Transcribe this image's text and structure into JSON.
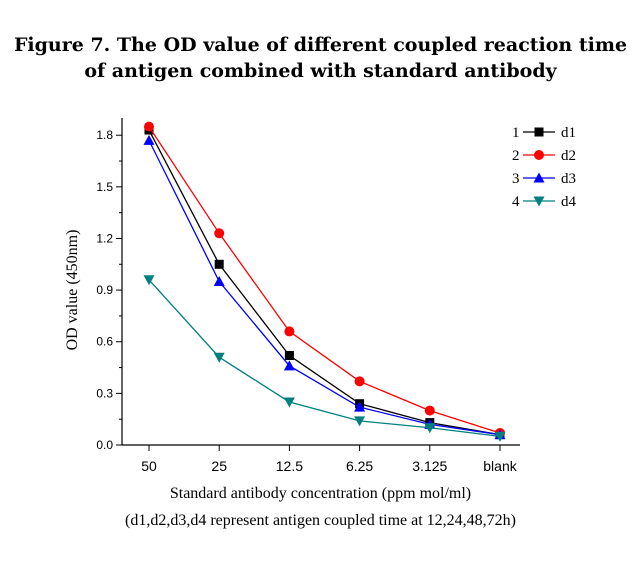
{
  "figure": {
    "title_line1": "Figure 7. The OD value of different coupled reaction time",
    "title_line2": "of antigen combined with standard antibody",
    "note": "(d1,d2,d3,d4 represent antigen coupled time at 12,24,48,72h)"
  },
  "chart_data": {
    "type": "line",
    "title": "Figure 7. The OD value of different coupled reaction time of antigen combined with standard antibody",
    "xlabel": "Standard antibody concentration (ppm mol/ml)",
    "ylabel": "OD value (450nm)",
    "categories": [
      "50",
      "25",
      "12.5",
      "6.25",
      "3.125",
      "blank"
    ],
    "ylim": [
      0,
      1.9
    ],
    "yticks": [
      "0.0",
      "0.3",
      "0.6",
      "0.9",
      "1.2",
      "1.5",
      "1.8"
    ],
    "grid": false,
    "legend_position": "top-right",
    "series": [
      {
        "index": "1",
        "name": "d1",
        "color": "#000000",
        "marker": "square",
        "values": [
          1.83,
          1.05,
          0.52,
          0.24,
          0.13,
          0.06
        ]
      },
      {
        "index": "2",
        "name": "d2",
        "color": "#ff0000",
        "marker": "circle",
        "values": [
          1.85,
          1.23,
          0.66,
          0.37,
          0.2,
          0.07
        ]
      },
      {
        "index": "3",
        "name": "d3",
        "color": "#0000ff",
        "marker": "triangle-up",
        "values": [
          1.77,
          0.95,
          0.46,
          0.22,
          0.12,
          0.06
        ]
      },
      {
        "index": "4",
        "name": "d4",
        "color": "#008080",
        "marker": "triangle-down",
        "values": [
          0.96,
          0.51,
          0.25,
          0.14,
          0.1,
          0.05
        ]
      }
    ]
  }
}
